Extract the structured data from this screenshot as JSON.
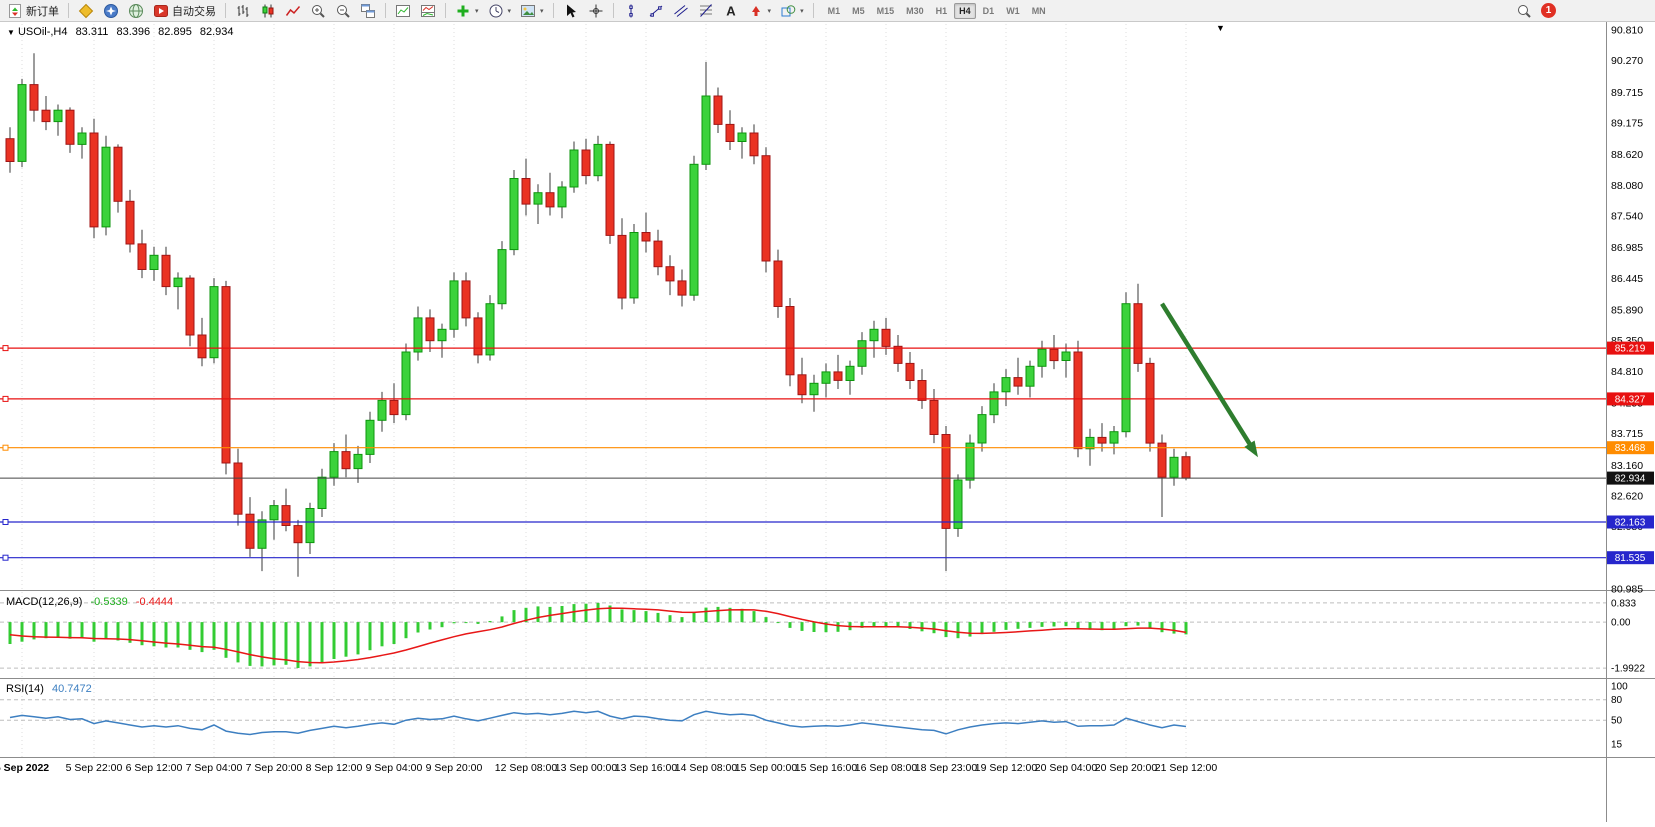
{
  "toolbar": {
    "new_order_label": "新订单",
    "autotrading_label": "自动交易",
    "timeframe_buttons": [
      "M1",
      "M5",
      "M15",
      "M30",
      "H1",
      "H4",
      "D1",
      "W1",
      "MN"
    ],
    "active_timeframe": "H4",
    "notification_badge": "1",
    "icons": [
      "new-order-icon",
      "market-watch-icon",
      "navigator-icon",
      "terminal-icon",
      "autotrading-icon",
      "bar-chart-icon",
      "candlestick-chart-icon",
      "line-chart-icon",
      "zoom-in-icon",
      "zoom-out-icon",
      "tile-windows-icon",
      "indicators-window-icon",
      "chart-window-icon",
      "add-indicator-icon",
      "periods-icon",
      "templates-icon",
      "cursor-icon",
      "crosshair-icon",
      "vertical-line-icon",
      "trendline-icon",
      "channel-icon",
      "fibonacci-icon",
      "text-icon",
      "arrows-icon",
      "shapes-icon",
      "search-icon",
      "chevron-down-icon"
    ]
  },
  "chart_header": {
    "symbol_period": "USOil-,H4",
    "open": "83.311",
    "high": "83.396",
    "low": "82.895",
    "close": "82.934"
  },
  "macd_panel": {
    "title": "MACD(12,26,9)",
    "main_value": "-0.5339",
    "signal_value": "-0.4444"
  },
  "rsi_panel": {
    "title": "RSI(14)",
    "value": "40.7472"
  },
  "chart_data": {
    "type": "candlestick",
    "symbol": "USOil-",
    "period": "H4",
    "up_color": "#3bd23b",
    "up_border": "#0c960c",
    "down_color": "#ea3323",
    "down_border": "#a01515",
    "y_range": [
      80.985,
      90.81
    ],
    "y_ticks": [
      "90.810",
      "90.270",
      "89.715",
      "89.175",
      "88.620",
      "88.080",
      "87.540",
      "86.985",
      "86.445",
      "85.890",
      "85.350",
      "84.810",
      "84.255",
      "83.715",
      "83.160",
      "82.620",
      "82.080",
      "81.535",
      "80.985"
    ],
    "x_labels": [
      {
        "label": "5 Sep 2022",
        "i": 1
      },
      {
        "label": "5 Sep 22:00",
        "i": 7
      },
      {
        "label": "6 Sep 12:00",
        "i": 12
      },
      {
        "label": "7 Sep 04:00",
        "i": 17
      },
      {
        "label": "7 Sep 20:00",
        "i": 22
      },
      {
        "label": "8 Sep 12:00",
        "i": 27
      },
      {
        "label": "9 Sep 04:00",
        "i": 32
      },
      {
        "label": "9 Sep 20:00",
        "i": 37
      },
      {
        "label": "12 Sep 08:00",
        "i": 43
      },
      {
        "label": "13 Sep 00:00",
        "i": 48
      },
      {
        "label": "13 Sep 16:00",
        "i": 53
      },
      {
        "label": "14 Sep 08:00",
        "i": 58
      },
      {
        "label": "15 Sep 00:00",
        "i": 63
      },
      {
        "label": "15 Sep 16:00",
        "i": 68
      },
      {
        "label": "16 Sep 08:00",
        "i": 73
      },
      {
        "label": "18 Sep 23:00",
        "i": 78
      },
      {
        "label": "19 Sep 12:00",
        "i": 83
      },
      {
        "label": "20 Sep 04:00",
        "i": 88
      },
      {
        "label": "20 Sep 20:00",
        "i": 93
      },
      {
        "label": "21 Sep 12:00",
        "i": 98
      }
    ],
    "candles": [
      [
        88.9,
        89.1,
        88.3,
        88.5
      ],
      [
        88.5,
        89.95,
        88.4,
        89.85
      ],
      [
        89.85,
        90.4,
        89.2,
        89.4
      ],
      [
        89.4,
        89.65,
        89.05,
        89.2
      ],
      [
        89.2,
        89.5,
        88.95,
        89.4
      ],
      [
        89.4,
        89.45,
        88.65,
        88.8
      ],
      [
        88.8,
        89.1,
        88.55,
        89.0
      ],
      [
        89.0,
        89.25,
        87.15,
        87.35
      ],
      [
        87.35,
        88.95,
        87.2,
        88.75
      ],
      [
        88.75,
        88.8,
        87.6,
        87.8
      ],
      [
        87.8,
        88.0,
        86.9,
        87.05
      ],
      [
        87.05,
        87.3,
        86.45,
        86.6
      ],
      [
        86.6,
        87.0,
        86.4,
        86.85
      ],
      [
        86.85,
        87.0,
        86.15,
        86.3
      ],
      [
        86.3,
        86.55,
        85.9,
        86.45
      ],
      [
        86.45,
        86.5,
        85.25,
        85.45
      ],
      [
        85.45,
        85.75,
        84.9,
        85.05
      ],
      [
        85.05,
        86.45,
        84.95,
        86.3
      ],
      [
        86.3,
        86.4,
        83.0,
        83.2
      ],
      [
        83.2,
        83.45,
        82.1,
        82.3
      ],
      [
        82.3,
        82.6,
        81.55,
        81.7
      ],
      [
        81.7,
        82.35,
        81.3,
        82.2
      ],
      [
        82.2,
        82.55,
        81.85,
        82.45
      ],
      [
        82.45,
        82.75,
        82.0,
        82.1
      ],
      [
        82.1,
        82.2,
        81.2,
        81.8
      ],
      [
        81.8,
        82.5,
        81.6,
        82.4
      ],
      [
        82.4,
        83.1,
        82.25,
        82.95
      ],
      [
        82.95,
        83.55,
        82.8,
        83.4
      ],
      [
        83.4,
        83.7,
        82.95,
        83.1
      ],
      [
        83.1,
        83.5,
        82.85,
        83.35
      ],
      [
        83.35,
        84.1,
        83.2,
        83.95
      ],
      [
        83.95,
        84.45,
        83.75,
        84.3
      ],
      [
        84.3,
        84.6,
        83.9,
        84.05
      ],
      [
        84.05,
        85.3,
        83.95,
        85.15
      ],
      [
        85.15,
        85.95,
        85.0,
        85.75
      ],
      [
        85.75,
        85.9,
        85.15,
        85.35
      ],
      [
        85.35,
        85.65,
        85.05,
        85.55
      ],
      [
        85.55,
        86.55,
        85.4,
        86.4
      ],
      [
        86.4,
        86.55,
        85.6,
        85.75
      ],
      [
        85.75,
        85.85,
        84.95,
        85.1
      ],
      [
        85.1,
        86.15,
        85.0,
        86.0
      ],
      [
        86.0,
        87.1,
        85.9,
        86.95
      ],
      [
        86.95,
        88.35,
        86.85,
        88.2
      ],
      [
        88.2,
        88.55,
        87.55,
        87.75
      ],
      [
        87.75,
        88.1,
        87.4,
        87.95
      ],
      [
        87.95,
        88.3,
        87.55,
        87.7
      ],
      [
        87.7,
        88.15,
        87.5,
        88.05
      ],
      [
        88.05,
        88.85,
        87.95,
        88.7
      ],
      [
        88.7,
        88.9,
        88.1,
        88.25
      ],
      [
        88.25,
        88.95,
        88.15,
        88.8
      ],
      [
        88.8,
        88.85,
        87.05,
        87.2
      ],
      [
        87.2,
        87.5,
        85.9,
        86.1
      ],
      [
        86.1,
        87.4,
        86.0,
        87.25
      ],
      [
        87.25,
        87.6,
        86.9,
        87.1
      ],
      [
        87.1,
        87.3,
        86.5,
        86.65
      ],
      [
        86.65,
        86.85,
        86.15,
        86.4
      ],
      [
        86.4,
        86.6,
        85.95,
        86.15
      ],
      [
        86.15,
        88.6,
        86.05,
        88.45
      ],
      [
        88.45,
        90.25,
        88.35,
        89.65
      ],
      [
        89.65,
        89.8,
        89.0,
        89.15
      ],
      [
        89.15,
        89.4,
        88.7,
        88.85
      ],
      [
        88.85,
        89.1,
        88.55,
        89.0
      ],
      [
        89.0,
        89.15,
        88.45,
        88.6
      ],
      [
        88.6,
        88.75,
        86.55,
        86.75
      ],
      [
        86.75,
        86.95,
        85.75,
        85.95
      ],
      [
        85.95,
        86.1,
        84.55,
        84.75
      ],
      [
        84.75,
        85.05,
        84.25,
        84.4
      ],
      [
        84.4,
        84.75,
        84.1,
        84.6
      ],
      [
        84.6,
        84.95,
        84.35,
        84.8
      ],
      [
        84.8,
        85.1,
        84.5,
        84.65
      ],
      [
        84.65,
        85.0,
        84.4,
        84.9
      ],
      [
        84.9,
        85.5,
        84.75,
        85.35
      ],
      [
        85.35,
        85.7,
        85.05,
        85.55
      ],
      [
        85.55,
        85.75,
        85.1,
        85.25
      ],
      [
        85.25,
        85.45,
        84.8,
        84.95
      ],
      [
        84.95,
        85.15,
        84.5,
        84.65
      ],
      [
        84.65,
        84.85,
        84.15,
        84.3
      ],
      [
        84.3,
        84.5,
        83.55,
        83.7
      ],
      [
        83.7,
        83.85,
        81.3,
        82.05
      ],
      [
        82.05,
        83.0,
        81.9,
        82.9
      ],
      [
        82.9,
        83.7,
        82.75,
        83.55
      ],
      [
        83.55,
        84.2,
        83.4,
        84.05
      ],
      [
        84.05,
        84.6,
        83.9,
        84.45
      ],
      [
        84.45,
        84.85,
        84.2,
        84.7
      ],
      [
        84.7,
        85.05,
        84.4,
        84.55
      ],
      [
        84.55,
        85.0,
        84.35,
        84.9
      ],
      [
        84.9,
        85.35,
        84.7,
        85.2
      ],
      [
        85.2,
        85.45,
        84.85,
        85.0
      ],
      [
        85.0,
        85.3,
        84.7,
        85.15
      ],
      [
        85.15,
        85.35,
        83.3,
        83.45
      ],
      [
        83.45,
        83.8,
        83.15,
        83.65
      ],
      [
        83.65,
        83.9,
        83.4,
        83.55
      ],
      [
        83.55,
        83.85,
        83.35,
        83.75
      ],
      [
        83.75,
        86.2,
        83.65,
        86.0
      ],
      [
        86.0,
        86.35,
        84.8,
        84.95
      ],
      [
        84.95,
        85.05,
        83.4,
        83.55
      ],
      [
        83.55,
        83.7,
        82.25,
        82.95
      ],
      [
        82.95,
        83.45,
        82.8,
        83.3
      ],
      [
        83.311,
        83.396,
        82.895,
        82.934
      ]
    ],
    "hlines": [
      {
        "price": 85.219,
        "label": "85.219",
        "color": "#e81010"
      },
      {
        "price": 84.327,
        "label": "84.327",
        "color": "#e81010"
      },
      {
        "price": 83.468,
        "label": "83.468",
        "color": "#ff8c00"
      },
      {
        "price": 82.163,
        "label": "82.163",
        "color": "#2626cc"
      },
      {
        "price": 81.535,
        "label": "81.535",
        "color": "#2626cc"
      }
    ],
    "bid_line": {
      "price": 82.934,
      "label": "82.934",
      "line_color": "#444444",
      "tag_color": "#111111"
    },
    "arrow": {
      "from": {
        "index": 96,
        "price": 86.0
      },
      "to": {
        "index": 104,
        "price": 83.3
      },
      "color": "#2e7d2e"
    },
    "macd": {
      "range": [
        -2.25,
        1.22
      ],
      "ticks": [
        {
          "v": 0.833,
          "label": "0.833"
        },
        {
          "v": 0,
          "label": "0.00"
        },
        {
          "v": -1.9922,
          "label": "-1.9922"
        }
      ],
      "histogram_color": "#33cc33",
      "signal_color": "#e81717",
      "histogram": [
        -0.95,
        -0.85,
        -0.75,
        -0.7,
        -0.68,
        -0.72,
        -0.7,
        -0.85,
        -0.75,
        -0.8,
        -0.9,
        -1.0,
        -1.05,
        -1.1,
        -1.1,
        -1.2,
        -1.3,
        -1.2,
        -1.55,
        -1.75,
        -1.9,
        -1.92,
        -1.88,
        -1.85,
        -1.99,
        -1.92,
        -1.78,
        -1.6,
        -1.5,
        -1.4,
        -1.22,
        -1.05,
        -0.95,
        -0.7,
        -0.45,
        -0.32,
        -0.22,
        -0.05,
        -0.02,
        -0.08,
        0.05,
        0.25,
        0.52,
        0.62,
        0.68,
        0.66,
        0.7,
        0.78,
        0.8,
        0.833,
        0.72,
        0.55,
        0.52,
        0.48,
        0.4,
        0.3,
        0.22,
        0.4,
        0.63,
        0.66,
        0.62,
        0.58,
        0.48,
        0.22,
        -0.02,
        -0.25,
        -0.38,
        -0.43,
        -0.44,
        -0.42,
        -0.35,
        -0.25,
        -0.2,
        -0.19,
        -0.23,
        -0.3,
        -0.4,
        -0.48,
        -0.65,
        -0.7,
        -0.63,
        -0.52,
        -0.42,
        -0.34,
        -0.29,
        -0.25,
        -0.21,
        -0.19,
        -0.18,
        -0.28,
        -0.33,
        -0.35,
        -0.34,
        -0.18,
        -0.15,
        -0.28,
        -0.44,
        -0.5,
        -0.5339
      ],
      "signal": [
        -0.55,
        -0.6,
        -0.63,
        -0.65,
        -0.66,
        -0.67,
        -0.68,
        -0.71,
        -0.72,
        -0.73,
        -0.76,
        -0.81,
        -0.86,
        -0.91,
        -0.95,
        -1.0,
        -1.06,
        -1.09,
        -1.18,
        -1.29,
        -1.41,
        -1.51,
        -1.59,
        -1.64,
        -1.71,
        -1.75,
        -1.76,
        -1.73,
        -1.68,
        -1.62,
        -1.54,
        -1.44,
        -1.34,
        -1.21,
        -1.06,
        -0.91,
        -0.77,
        -0.63,
        -0.51,
        -0.42,
        -0.33,
        -0.21,
        -0.06,
        0.08,
        0.2,
        0.29,
        0.37,
        0.45,
        0.52,
        0.58,
        0.61,
        0.6,
        0.58,
        0.56,
        0.53,
        0.48,
        0.43,
        0.42,
        0.46,
        0.5,
        0.53,
        0.54,
        0.53,
        0.47,
        0.37,
        0.24,
        0.12,
        0.01,
        -0.08,
        -0.15,
        -0.19,
        -0.2,
        -0.2,
        -0.2,
        -0.2,
        -0.22,
        -0.26,
        -0.3,
        -0.37,
        -0.44,
        -0.48,
        -0.49,
        -0.47,
        -0.45,
        -0.42,
        -0.38,
        -0.35,
        -0.31,
        -0.29,
        -0.29,
        -0.3,
        -0.31,
        -0.31,
        -0.29,
        -0.26,
        -0.26,
        -0.3,
        -0.36,
        -0.4444
      ]
    },
    "rsi": {
      "range": [
        -1,
        106
      ],
      "ticks": [
        {
          "v": 100,
          "label": "100"
        },
        {
          "v": 80,
          "label": "80"
        },
        {
          "v": 50,
          "label": "50"
        },
        {
          "v": 15,
          "label": "15"
        }
      ],
      "grid_levels": [
        80,
        50
      ],
      "line_color": "#3d7fc1",
      "values": [
        54,
        57,
        55,
        53,
        55,
        51,
        52,
        45,
        49,
        46,
        43,
        40,
        42,
        40,
        42,
        38,
        36,
        43,
        34,
        31,
        29,
        32,
        33,
        33,
        31,
        35,
        38,
        41,
        39,
        41,
        44,
        46,
        44,
        50,
        53,
        51,
        52,
        56,
        52,
        49,
        53,
        57,
        61,
        59,
        60,
        58,
        60,
        63,
        61,
        63,
        56,
        52,
        56,
        55,
        52,
        50,
        49,
        58,
        63,
        60,
        58,
        59,
        57,
        50,
        46,
        42,
        40,
        41,
        42,
        41,
        43,
        46,
        44,
        42,
        40,
        38,
        36,
        35,
        30,
        36,
        40,
        43,
        45,
        46,
        45,
        47,
        49,
        47,
        48,
        41,
        42,
        42,
        43,
        53,
        48,
        43,
        39,
        43,
        40.7472
      ]
    }
  }
}
